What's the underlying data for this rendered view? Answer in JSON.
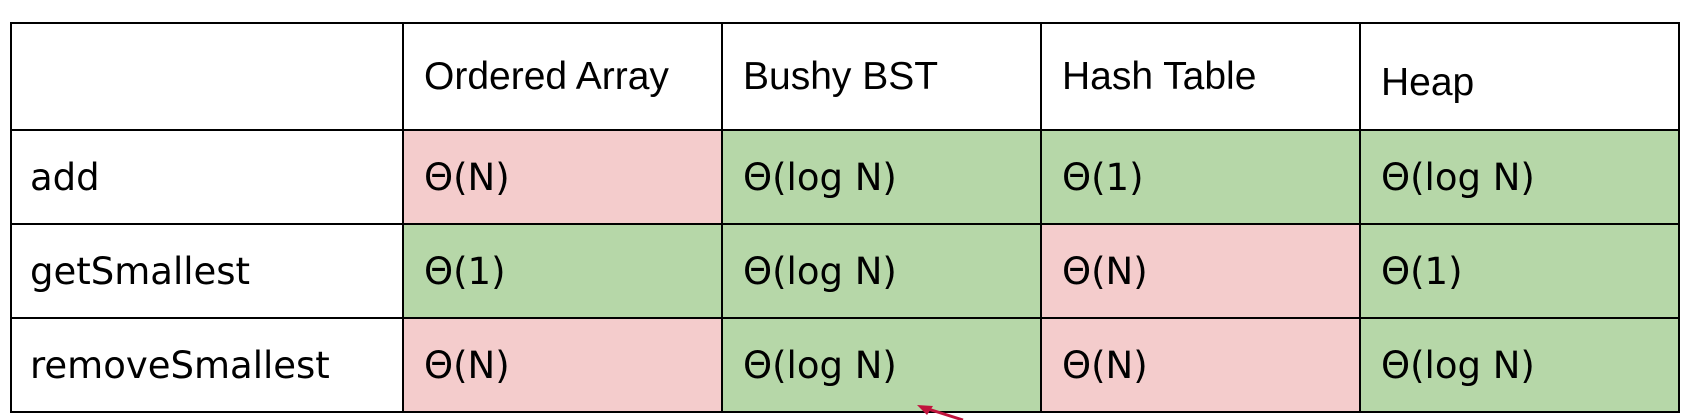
{
  "table": {
    "headers": [
      "",
      "Ordered Array",
      "Bushy BST",
      "Hash Table",
      "Heap"
    ],
    "rows": [
      {
        "op": "add",
        "cells": [
          {
            "text": "Θ(N)",
            "status": "bad"
          },
          {
            "text": "Θ(log N)",
            "status": "good"
          },
          {
            "text": "Θ(1)",
            "status": "good"
          },
          {
            "text": "Θ(log N)",
            "status": "good"
          }
        ]
      },
      {
        "op": "getSmallest",
        "cells": [
          {
            "text": "Θ(1)",
            "status": "good"
          },
          {
            "text": "Θ(log N)",
            "status": "good"
          },
          {
            "text": "Θ(N)",
            "status": "bad"
          },
          {
            "text": "Θ(1)",
            "status": "good"
          }
        ]
      },
      {
        "op": "removeSmallest",
        "cells": [
          {
            "text": "Θ(N)",
            "status": "bad"
          },
          {
            "text": "Θ(log N)",
            "status": "good"
          },
          {
            "text": "Θ(N)",
            "status": "bad"
          },
          {
            "text": "Θ(log N)",
            "status": "good"
          }
        ]
      }
    ]
  },
  "colors": {
    "good": "#b6d7a8",
    "bad": "#f4cccc",
    "border": "#000000",
    "arrow": "#c0143c"
  },
  "arrow_icon": "arrow-pointer-icon"
}
